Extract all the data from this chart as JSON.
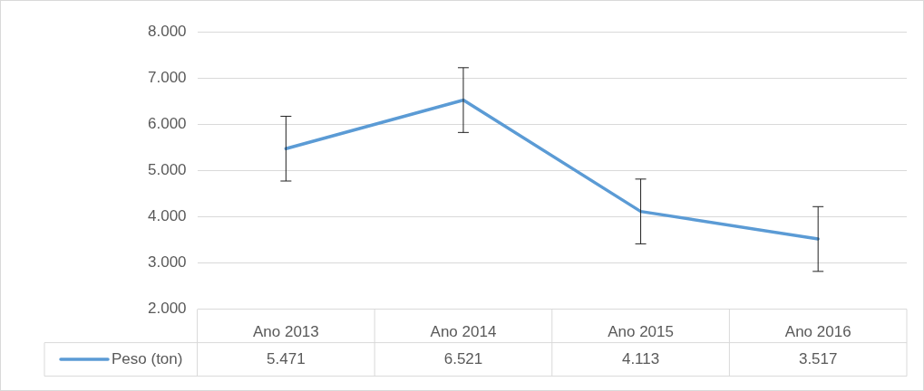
{
  "chart_data": {
    "type": "line",
    "categories": [
      "Ano 2013",
      "Ano 2014",
      "Ano 2015",
      "Ano 2016"
    ],
    "series": [
      {
        "name": "Peso (ton)",
        "color": "#5b9bd5",
        "values": [
          5471,
          6521,
          4113,
          3517
        ],
        "errors": [
          700,
          700,
          700,
          700
        ],
        "value_labels": [
          "5.471",
          "6.521",
          "4.113",
          "3.517"
        ]
      }
    ],
    "ylim": [
      2000,
      8000
    ],
    "yticks": [
      {
        "value": 2000,
        "label": "2.000"
      },
      {
        "value": 3000,
        "label": "3.000"
      },
      {
        "value": 4000,
        "label": "4.000"
      },
      {
        "value": 5000,
        "label": "5.000"
      },
      {
        "value": 6000,
        "label": "6.000"
      },
      {
        "value": 7000,
        "label": "7.000"
      },
      {
        "value": 8000,
        "label": "8.000"
      }
    ],
    "grid": "y",
    "legend": "bottom left",
    "marker": "none",
    "line_style": "solid"
  }
}
